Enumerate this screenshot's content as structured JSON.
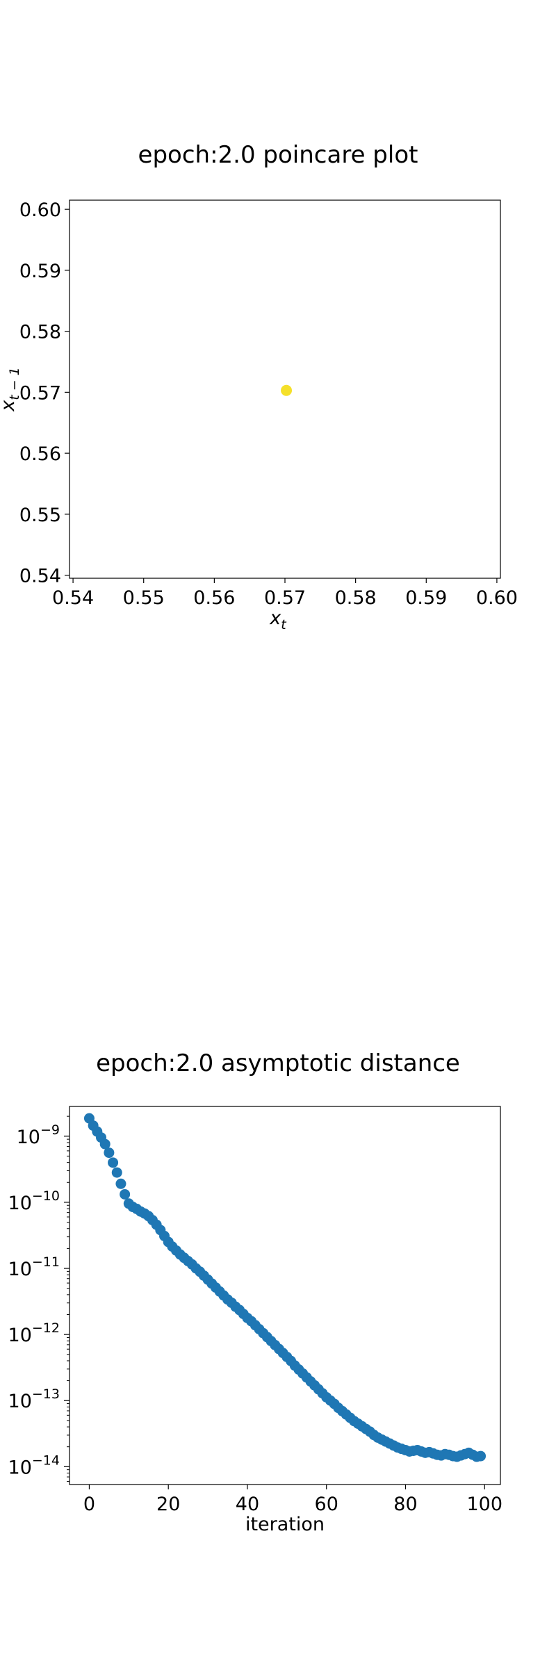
{
  "chart_data": [
    {
      "type": "scatter",
      "title": "epoch:2.0 poincare plot",
      "xlabel": "x",
      "xlabel_sub": "t",
      "ylabel": "x",
      "ylabel_sub": "t − 1",
      "xlim": [
        0.5395,
        0.6005
      ],
      "ylim": [
        0.5395,
        0.6015
      ],
      "xticks": [
        "0.54",
        "0.55",
        "0.56",
        "0.57",
        "0.58",
        "0.59",
        "0.60"
      ],
      "xtick_values": [
        0.54,
        0.55,
        0.56,
        0.57,
        0.58,
        0.59,
        0.6
      ],
      "yticks": [
        "0.54",
        "0.55",
        "0.56",
        "0.57",
        "0.58",
        "0.59",
        "0.60"
      ],
      "ytick_values": [
        0.54,
        0.55,
        0.56,
        0.57,
        0.58,
        0.59,
        0.6
      ],
      "points": [
        {
          "x": 0.5702,
          "y": 0.5703
        }
      ],
      "point_color": "#f5e02a",
      "grid": false
    },
    {
      "type": "scatter",
      "title": "epoch:2.0 asymptotic distance",
      "xlabel": "iteration",
      "ylabel": "",
      "yscale": "log",
      "xlim": [
        -5,
        104
      ],
      "ylim_log10": [
        -14.27,
        -8.55
      ],
      "xticks": [
        "0",
        "20",
        "40",
        "60",
        "80",
        "100"
      ],
      "xtick_values": [
        0,
        20,
        40,
        60,
        80,
        100
      ],
      "yticks": [
        "10",
        "10",
        "10",
        "10",
        "10",
        "10"
      ],
      "ytick_exponents": [
        "−9",
        "−10",
        "−11",
        "−12",
        "−13",
        "−14"
      ],
      "ytick_log10": [
        -9,
        -10,
        -11,
        -12,
        -13,
        -14
      ],
      "point_color": "#1f77b4",
      "grid": false,
      "x": [
        0,
        1,
        2,
        3,
        4,
        5,
        6,
        7,
        8,
        9,
        10,
        11,
        12,
        13,
        14,
        15,
        16,
        17,
        18,
        19,
        20,
        21,
        22,
        23,
        24,
        25,
        26,
        27,
        28,
        29,
        30,
        31,
        32,
        33,
        34,
        35,
        36,
        37,
        38,
        39,
        40,
        41,
        42,
        43,
        44,
        45,
        46,
        47,
        48,
        49,
        50,
        51,
        52,
        53,
        54,
        55,
        56,
        57,
        58,
        59,
        60,
        61,
        62,
        63,
        64,
        65,
        66,
        67,
        68,
        69,
        70,
        71,
        72,
        73,
        74,
        75,
        76,
        77,
        78,
        79,
        80,
        81,
        82,
        83,
        84,
        85,
        86,
        87,
        88,
        89,
        90,
        91,
        92,
        93,
        94,
        95,
        96,
        97,
        98,
        99
      ],
      "y_log10": [
        -8.73,
        -8.84,
        -8.93,
        -9.02,
        -9.12,
        -9.25,
        -9.4,
        -9.55,
        -9.72,
        -9.88,
        -10.02,
        -10.07,
        -10.1,
        -10.14,
        -10.17,
        -10.21,
        -10.27,
        -10.34,
        -10.42,
        -10.51,
        -10.6,
        -10.67,
        -10.73,
        -10.79,
        -10.84,
        -10.89,
        -10.94,
        -11.0,
        -11.05,
        -11.11,
        -11.17,
        -11.23,
        -11.29,
        -11.35,
        -11.41,
        -11.47,
        -11.52,
        -11.58,
        -11.63,
        -11.69,
        -11.75,
        -11.8,
        -11.86,
        -11.92,
        -11.98,
        -12.04,
        -12.1,
        -12.16,
        -12.22,
        -12.28,
        -12.34,
        -12.4,
        -12.47,
        -12.53,
        -12.59,
        -12.65,
        -12.71,
        -12.77,
        -12.83,
        -12.89,
        -12.95,
        -13.0,
        -13.05,
        -13.11,
        -13.16,
        -13.21,
        -13.26,
        -13.31,
        -13.35,
        -13.39,
        -13.43,
        -13.47,
        -13.52,
        -13.56,
        -13.59,
        -13.62,
        -13.65,
        -13.68,
        -13.71,
        -13.73,
        -13.75,
        -13.77,
        -13.76,
        -13.75,
        -13.77,
        -13.79,
        -13.78,
        -13.8,
        -13.82,
        -13.83,
        -13.81,
        -13.82,
        -13.84,
        -13.85,
        -13.83,
        -13.81,
        -13.79,
        -13.82,
        -13.85,
        -13.84
      ]
    }
  ]
}
